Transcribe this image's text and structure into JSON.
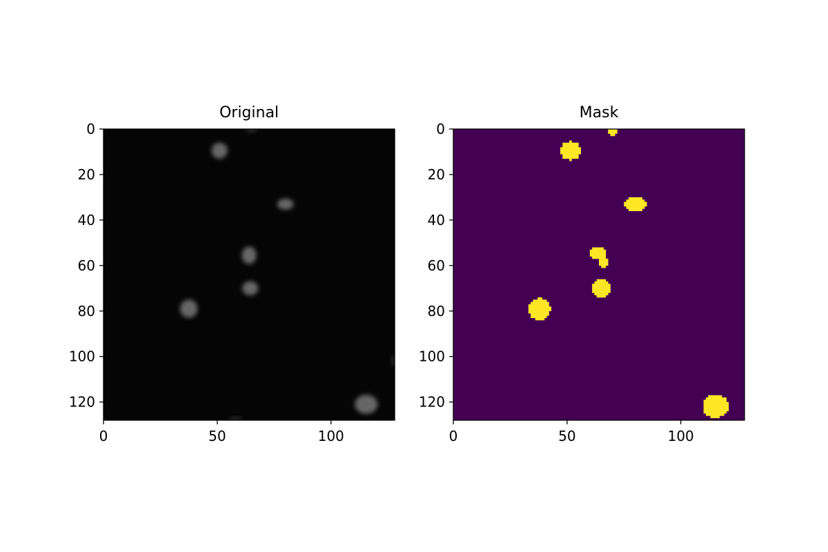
{
  "chart_data": [
    {
      "type": "heatmap",
      "title": "Original",
      "colormap": "gray",
      "image_size": [
        128,
        128
      ],
      "xlim": [
        0,
        128
      ],
      "ylim": [
        128,
        0
      ],
      "x_ticks": [
        0,
        50,
        100
      ],
      "y_ticks": [
        0,
        20,
        40,
        60,
        80,
        100,
        120
      ],
      "x_tick_labels": [
        "0",
        "50",
        "100"
      ],
      "y_tick_labels": [
        "0",
        "20",
        "40",
        "60",
        "80",
        "100",
        "120"
      ],
      "background_color": "#050505",
      "blob_color": "#6a6a6a",
      "blobs": [
        {
          "cx": 51,
          "cy": 9.5,
          "rx": 3.5,
          "ry": 3.5,
          "intensity": 0.42
        },
        {
          "cx": 80,
          "cy": 33,
          "rx": 3.6,
          "ry": 2.4,
          "intensity": 0.42
        },
        {
          "cx": 64,
          "cy": 55.5,
          "rx": 3.2,
          "ry": 3.8,
          "intensity": 0.42
        },
        {
          "cx": 64.5,
          "cy": 70,
          "rx": 3.5,
          "ry": 3.1,
          "intensity": 0.42
        },
        {
          "cx": 37.5,
          "cy": 79,
          "rx": 3.8,
          "ry": 4.0,
          "intensity": 0.42
        },
        {
          "cx": 115.5,
          "cy": 121,
          "rx": 5.0,
          "ry": 4.2,
          "intensity": 0.42
        },
        {
          "cx": 65,
          "cy": 0.3,
          "rx": 2.5,
          "ry": 1.0,
          "intensity": 0.2
        },
        {
          "cx": 58,
          "cy": 127.5,
          "rx": 3.0,
          "ry": 0.8,
          "intensity": 0.2
        },
        {
          "cx": 127.5,
          "cy": 102,
          "rx": 0.8,
          "ry": 2.5,
          "intensity": 0.2
        }
      ]
    },
    {
      "type": "heatmap",
      "title": "Mask",
      "colormap": "viridis",
      "image_size": [
        128,
        128
      ],
      "xlim": [
        0,
        128
      ],
      "ylim": [
        128,
        0
      ],
      "x_ticks": [
        0,
        50,
        100
      ],
      "y_ticks": [
        0,
        20,
        40,
        60,
        80,
        100,
        120
      ],
      "x_tick_labels": [
        "0",
        "50",
        "100"
      ],
      "y_tick_labels": [
        "0",
        "20",
        "40",
        "60",
        "80",
        "100",
        "120"
      ],
      "values": [
        0,
        1
      ],
      "background_color": "#440154",
      "foreground_color": "#fde725",
      "blobs": [
        {
          "cx": 51.5,
          "cy": 9.5,
          "rx": 4.6,
          "ry": 4.0
        },
        {
          "cx": 80,
          "cy": 33,
          "rx": 4.8,
          "ry": 3.2
        },
        {
          "cx": 63.5,
          "cy": 54.5,
          "rx": 3.4,
          "ry": 2.8
        },
        {
          "cx": 66,
          "cy": 58.5,
          "rx": 2.0,
          "ry": 2.4
        },
        {
          "cx": 65,
          "cy": 70,
          "rx": 4.4,
          "ry": 3.8
        },
        {
          "cx": 37.8,
          "cy": 79.2,
          "rx": 4.8,
          "ry": 4.8
        },
        {
          "cx": 115.3,
          "cy": 121.8,
          "rx": 5.8,
          "ry": 5.0
        },
        {
          "cx": 70,
          "cy": 1.0,
          "rx": 2.0,
          "ry": 1.6
        }
      ]
    }
  ]
}
